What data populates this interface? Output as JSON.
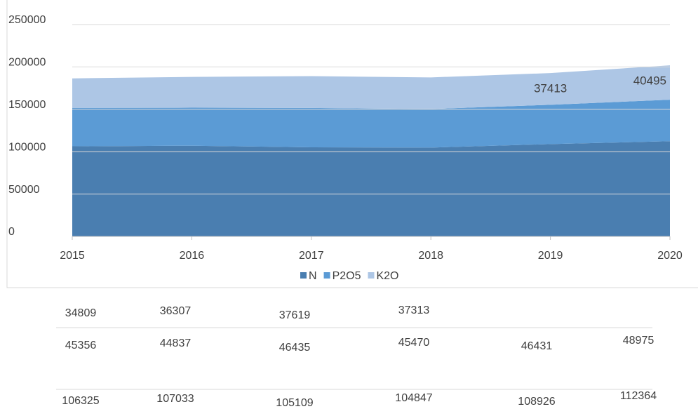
{
  "chart_data": {
    "type": "area",
    "stacked": true,
    "x": [
      2015,
      2016,
      2017,
      2018,
      2019,
      2020
    ],
    "xlim": [
      2015,
      2020
    ],
    "xticks": [
      2015,
      2016,
      2017,
      2018,
      2019,
      2020
    ],
    "ylim": [
      0,
      250000
    ],
    "yticks": [
      0,
      50000,
      100000,
      150000,
      200000,
      250000
    ],
    "grid": true,
    "legend": "bottom",
    "series": [
      {
        "name": "N",
        "color": "#4a7eb0",
        "values": [
          106325,
          107033,
          105109,
          104847,
          108926,
          112364
        ]
      },
      {
        "name": "P2O5",
        "color": "#5b9bd5",
        "values": [
          45356,
          44837,
          46435,
          45470,
          46431,
          48975
        ]
      },
      {
        "name": "K2O",
        "color": "#adc6e5",
        "values": [
          34809,
          36307,
          37619,
          37313,
          37413,
          40495
        ]
      }
    ]
  }
}
